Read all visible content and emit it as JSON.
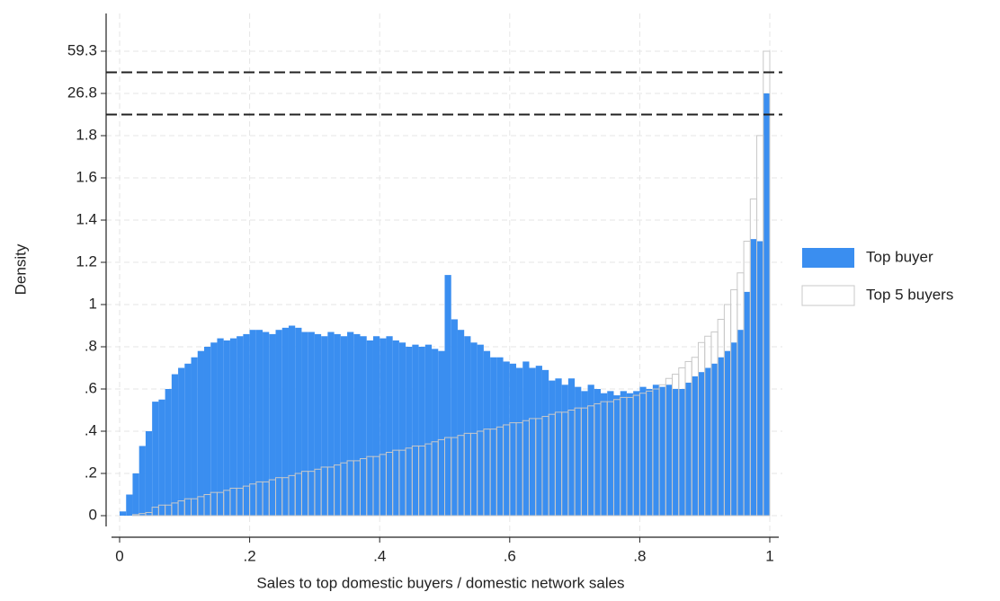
{
  "chart_data": {
    "type": "histogram",
    "xlabel": "Sales to top domestic buyers / domestic network sales",
    "ylabel": "Density",
    "bins": [
      0,
      0.01,
      0.02,
      0.03,
      0.04,
      0.05,
      0.06,
      0.07,
      0.08,
      0.09,
      0.1,
      0.11,
      0.12,
      0.13,
      0.14,
      0.15,
      0.16,
      0.17,
      0.18,
      0.19,
      0.2,
      0.21,
      0.22,
      0.23,
      0.24,
      0.25,
      0.26,
      0.27,
      0.28,
      0.29,
      0.3,
      0.31,
      0.32,
      0.33,
      0.34,
      0.35,
      0.36,
      0.37,
      0.38,
      0.39,
      0.4,
      0.41,
      0.42,
      0.43,
      0.44,
      0.45,
      0.46,
      0.47,
      0.48,
      0.49,
      0.5,
      0.51,
      0.52,
      0.53,
      0.54,
      0.55,
      0.56,
      0.57,
      0.58,
      0.59,
      0.6,
      0.61,
      0.62,
      0.63,
      0.64,
      0.65,
      0.66,
      0.67,
      0.68,
      0.69,
      0.7,
      0.71,
      0.72,
      0.73,
      0.74,
      0.75,
      0.76,
      0.77,
      0.78,
      0.79,
      0.8,
      0.81,
      0.82,
      0.83,
      0.84,
      0.85,
      0.86,
      0.87,
      0.88,
      0.89,
      0.9,
      0.91,
      0.92,
      0.93,
      0.94,
      0.95,
      0.96,
      0.97,
      0.98,
      0.99,
      1
    ],
    "series": [
      {
        "name": "Top buyer",
        "color": "#3a8ef0",
        "values": [
          0.02,
          0.1,
          0.2,
          0.33,
          0.4,
          0.54,
          0.55,
          0.6,
          0.67,
          0.7,
          0.72,
          0.75,
          0.78,
          0.8,
          0.82,
          0.84,
          0.83,
          0.84,
          0.85,
          0.86,
          0.88,
          0.88,
          0.87,
          0.86,
          0.88,
          0.89,
          0.9,
          0.89,
          0.87,
          0.87,
          0.86,
          0.85,
          0.87,
          0.86,
          0.85,
          0.87,
          0.86,
          0.85,
          0.83,
          0.85,
          0.84,
          0.85,
          0.83,
          0.82,
          0.8,
          0.81,
          0.8,
          0.81,
          0.79,
          0.78,
          1.14,
          0.93,
          0.88,
          0.85,
          0.82,
          0.81,
          0.78,
          0.75,
          0.75,
          0.73,
          0.72,
          0.7,
          0.73,
          0.7,
          0.71,
          0.69,
          0.64,
          0.65,
          0.62,
          0.65,
          0.61,
          0.59,
          0.62,
          0.6,
          0.58,
          0.59,
          0.57,
          0.59,
          0.58,
          0.59,
          0.61,
          0.6,
          0.62,
          0.61,
          0.62,
          0.6,
          0.6,
          0.63,
          0.66,
          0.68,
          0.7,
          0.72,
          0.75,
          0.78,
          0.82,
          0.88,
          1.06,
          1.31,
          1.3,
          26.8
        ]
      },
      {
        "name": "Top 5 buyers",
        "color": "#c8c8c8",
        "values": [
          0,
          0,
          0.005,
          0.01,
          0.015,
          0.04,
          0.05,
          0.05,
          0.06,
          0.07,
          0.08,
          0.08,
          0.09,
          0.1,
          0.11,
          0.11,
          0.12,
          0.13,
          0.13,
          0.14,
          0.15,
          0.16,
          0.16,
          0.17,
          0.18,
          0.18,
          0.19,
          0.2,
          0.21,
          0.21,
          0.22,
          0.23,
          0.23,
          0.24,
          0.25,
          0.26,
          0.26,
          0.27,
          0.28,
          0.28,
          0.29,
          0.3,
          0.31,
          0.31,
          0.32,
          0.33,
          0.33,
          0.34,
          0.35,
          0.36,
          0.37,
          0.37,
          0.38,
          0.39,
          0.39,
          0.4,
          0.41,
          0.41,
          0.42,
          0.43,
          0.44,
          0.44,
          0.45,
          0.46,
          0.46,
          0.47,
          0.48,
          0.49,
          0.49,
          0.5,
          0.51,
          0.51,
          0.52,
          0.53,
          0.54,
          0.54,
          0.55,
          0.56,
          0.56,
          0.57,
          0.58,
          0.59,
          0.6,
          0.62,
          0.65,
          0.67,
          0.7,
          0.73,
          0.75,
          0.82,
          0.85,
          0.87,
          0.93,
          1.0,
          1.07,
          1.15,
          1.3,
          1.5,
          1.85,
          59.3
        ]
      }
    ],
    "xlim": [
      0,
      1
    ],
    "xticks": [
      0,
      {
        "value": 0.2,
        "label": ".2"
      },
      {
        "value": 0.4,
        "label": ".4"
      },
      {
        "value": 0.6,
        "label": ".6"
      },
      {
        "value": 0.8,
        "label": ".8"
      },
      1
    ],
    "ylim": [
      0,
      59.3
    ],
    "yticks": [
      0,
      {
        "value": 0.2,
        "label": ".2"
      },
      {
        "value": 0.4,
        "label": ".4"
      },
      {
        "value": 0.6,
        "label": ".6"
      },
      {
        "value": 0.8,
        "label": ".8"
      },
      1,
      1.2,
      1.4,
      1.6,
      1.8,
      26.8,
      59.3
    ],
    "grid": true,
    "legend": "right"
  }
}
